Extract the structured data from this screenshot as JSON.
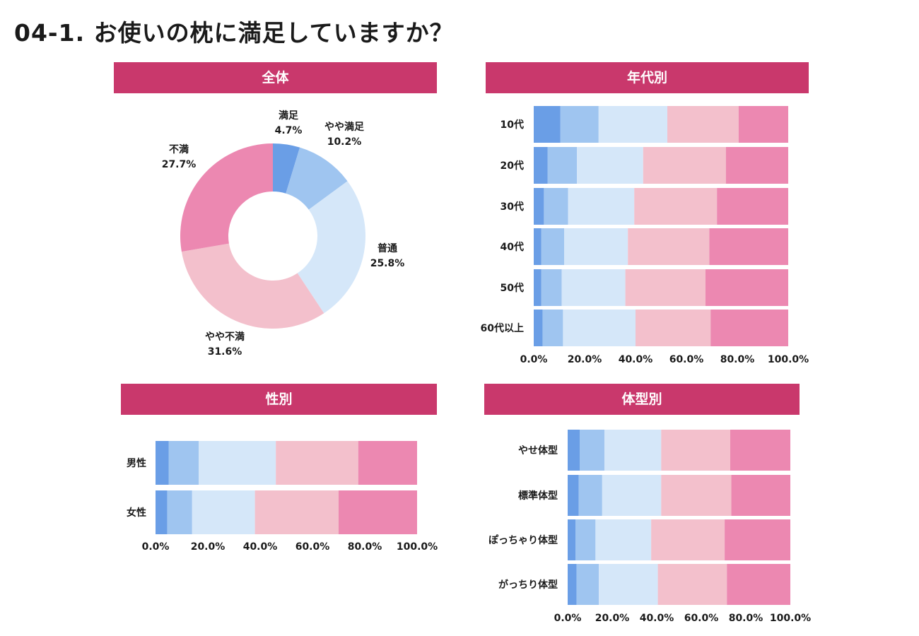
{
  "page": {
    "title": "04-1.  お使いの枕に満足していますか？"
  },
  "colors": {
    "header": "#c9386c",
    "categories": [
      "#6a9ee6",
      "#9fc5f0",
      "#d5e7f9",
      "#f3c0cc",
      "#ec88b1"
    ]
  },
  "categories": [
    "満足",
    "やや満足",
    "普通",
    "やや不満",
    "不満"
  ],
  "chart_data": [
    {
      "id": "overall",
      "type": "pie",
      "title": "全体",
      "labels": [
        "満足",
        "やや満足",
        "普通",
        "やや不満",
        "不満"
      ],
      "values": [
        4.7,
        10.2,
        25.8,
        31.6,
        27.7
      ],
      "value_labels": [
        "4.7%",
        "10.2%",
        "25.8%",
        "31.6%",
        "27.7%"
      ]
    },
    {
      "id": "age",
      "type": "bar",
      "title": "年代別",
      "orientation": "horizontal-stacked-100",
      "categories": [
        "10代",
        "20代",
        "30代",
        "40代",
        "50代",
        "60代以上"
      ],
      "series": [
        {
          "name": "満足",
          "values": [
            10.5,
            5.5,
            4.0,
            3.0,
            3.0,
            3.5
          ]
        },
        {
          "name": "やや満足",
          "values": [
            15.0,
            11.5,
            9.5,
            9.0,
            8.0,
            8.0
          ]
        },
        {
          "name": "普通",
          "values": [
            27.0,
            26.0,
            26.0,
            25.0,
            25.0,
            28.5
          ]
        },
        {
          "name": "やや不満",
          "values": [
            28.0,
            32.5,
            32.5,
            32.0,
            31.5,
            29.5
          ]
        },
        {
          "name": "不満",
          "values": [
            19.5,
            24.5,
            28.0,
            31.0,
            32.5,
            30.5
          ]
        }
      ],
      "xlim": [
        0,
        100
      ],
      "xticks": [
        "0.0%",
        "20.0%",
        "40.0%",
        "60.0%",
        "80.0%",
        "100.0%"
      ]
    },
    {
      "id": "gender",
      "type": "bar",
      "title": "性別",
      "orientation": "horizontal-stacked-100",
      "categories": [
        "男性",
        "女性"
      ],
      "series": [
        {
          "name": "満足",
          "values": [
            5.0,
            4.5
          ]
        },
        {
          "name": "やや満足",
          "values": [
            11.5,
            9.5
          ]
        },
        {
          "name": "普通",
          "values": [
            29.5,
            24.0
          ]
        },
        {
          "name": "やや不満",
          "values": [
            31.5,
            32.0
          ]
        },
        {
          "name": "不満",
          "values": [
            22.5,
            30.0
          ]
        }
      ],
      "xlim": [
        0,
        100
      ],
      "xticks": [
        "0.0%",
        "20.0%",
        "40.0%",
        "60.0%",
        "80.0%",
        "100.0%"
      ]
    },
    {
      "id": "body",
      "type": "bar",
      "title": "体型別",
      "orientation": "horizontal-stacked-100",
      "categories": [
        "やせ体型",
        "標準体型",
        "ぽっちゃり体型",
        "がっちり体型"
      ],
      "series": [
        {
          "name": "満足",
          "values": [
            5.5,
            5.0,
            3.5,
            4.0
          ]
        },
        {
          "name": "やや満足",
          "values": [
            11.0,
            10.5,
            9.0,
            10.0
          ]
        },
        {
          "name": "普通",
          "values": [
            25.5,
            26.5,
            25.0,
            26.5
          ]
        },
        {
          "name": "やや不満",
          "values": [
            31.0,
            31.5,
            33.0,
            31.0
          ]
        },
        {
          "name": "不満",
          "values": [
            27.0,
            26.5,
            29.5,
            28.5
          ]
        }
      ],
      "xlim": [
        0,
        100
      ],
      "xticks": [
        "0.0%",
        "20.0%",
        "40.0%",
        "60.0%",
        "80.0%",
        "100.0%"
      ]
    }
  ]
}
